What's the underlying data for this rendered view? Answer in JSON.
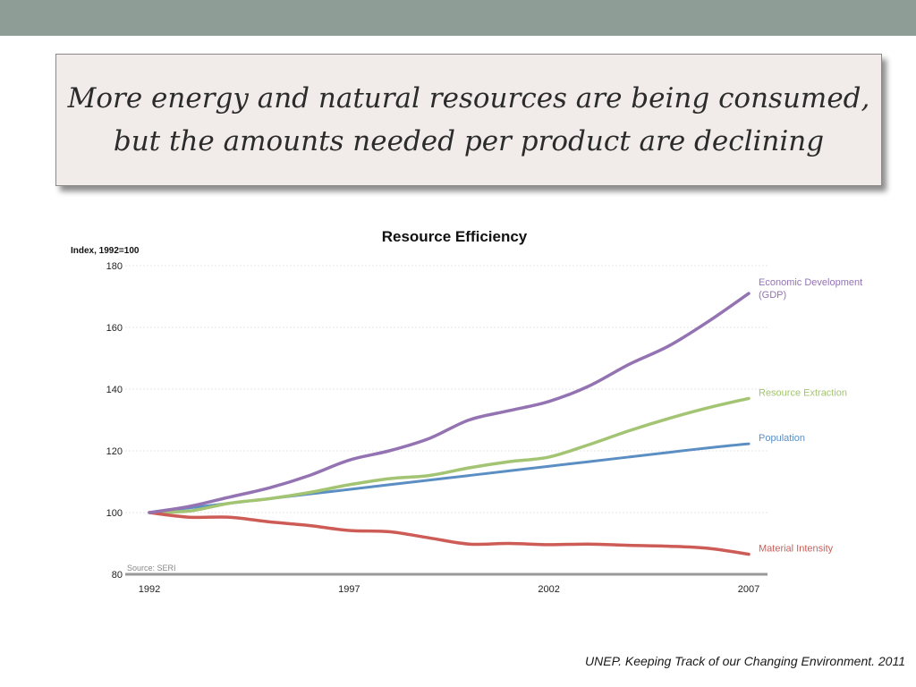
{
  "slide": {
    "headline_line1": "More energy and natural resources are being consumed,",
    "headline_line2": "but the amounts needed per product are declining",
    "citation": "UNEP. Keeping Track of our Changing Environment. 2011",
    "colors": {
      "top_bar": "#8e9e96",
      "headline_box": "#f1ecea"
    }
  },
  "chart_data": {
    "type": "line",
    "title": "Resource Efficiency",
    "ylabel": "Index, 1992=100",
    "source": "Source: SERI",
    "ylim": [
      80,
      180
    ],
    "xlim": [
      1992,
      2007
    ],
    "x_ticks": [
      1992,
      1997,
      2002,
      2007
    ],
    "y_ticks": [
      80,
      100,
      120,
      140,
      160,
      180
    ],
    "grid": true,
    "x": [
      1992,
      1993,
      1994,
      1995,
      1996,
      1997,
      1998,
      1999,
      2000,
      2001,
      2002,
      2003,
      2004,
      2005,
      2006,
      2007
    ],
    "series": [
      {
        "name": "Economic Development (GDP)",
        "label_lines": [
          "Economic Development",
          "(GDP)"
        ],
        "color": "#9473b3",
        "values": [
          100,
          102,
          105,
          108,
          112,
          117,
          120,
          124,
          130,
          133,
          136,
          141,
          148,
          154,
          162,
          171
        ]
      },
      {
        "name": "Resource Extraction",
        "label_lines": [
          "Resource Extraction"
        ],
        "color": "#a3c472",
        "values": [
          100,
          100.5,
          103,
          104.5,
          106.5,
          109,
          111,
          112,
          114.5,
          116.5,
          118,
          122,
          126.5,
          130.5,
          134,
          137
        ]
      },
      {
        "name": "Population",
        "label_lines": [
          "Population"
        ],
        "color": "#5b8fc4",
        "values": [
          100,
          101.5,
          103,
          104.5,
          106,
          107.5,
          109,
          110.5,
          112,
          113.5,
          115,
          116.5,
          118,
          119.5,
          121,
          122.3
        ]
      },
      {
        "name": "Material Intensity",
        "label_lines": [
          "Material Intensity"
        ],
        "color": "#cd5c56",
        "values": [
          100,
          98.5,
          98.5,
          97,
          95.8,
          94.2,
          93.8,
          91.8,
          89.8,
          90,
          89.6,
          89.8,
          89.4,
          89.1,
          88.4,
          86.5
        ]
      }
    ]
  }
}
